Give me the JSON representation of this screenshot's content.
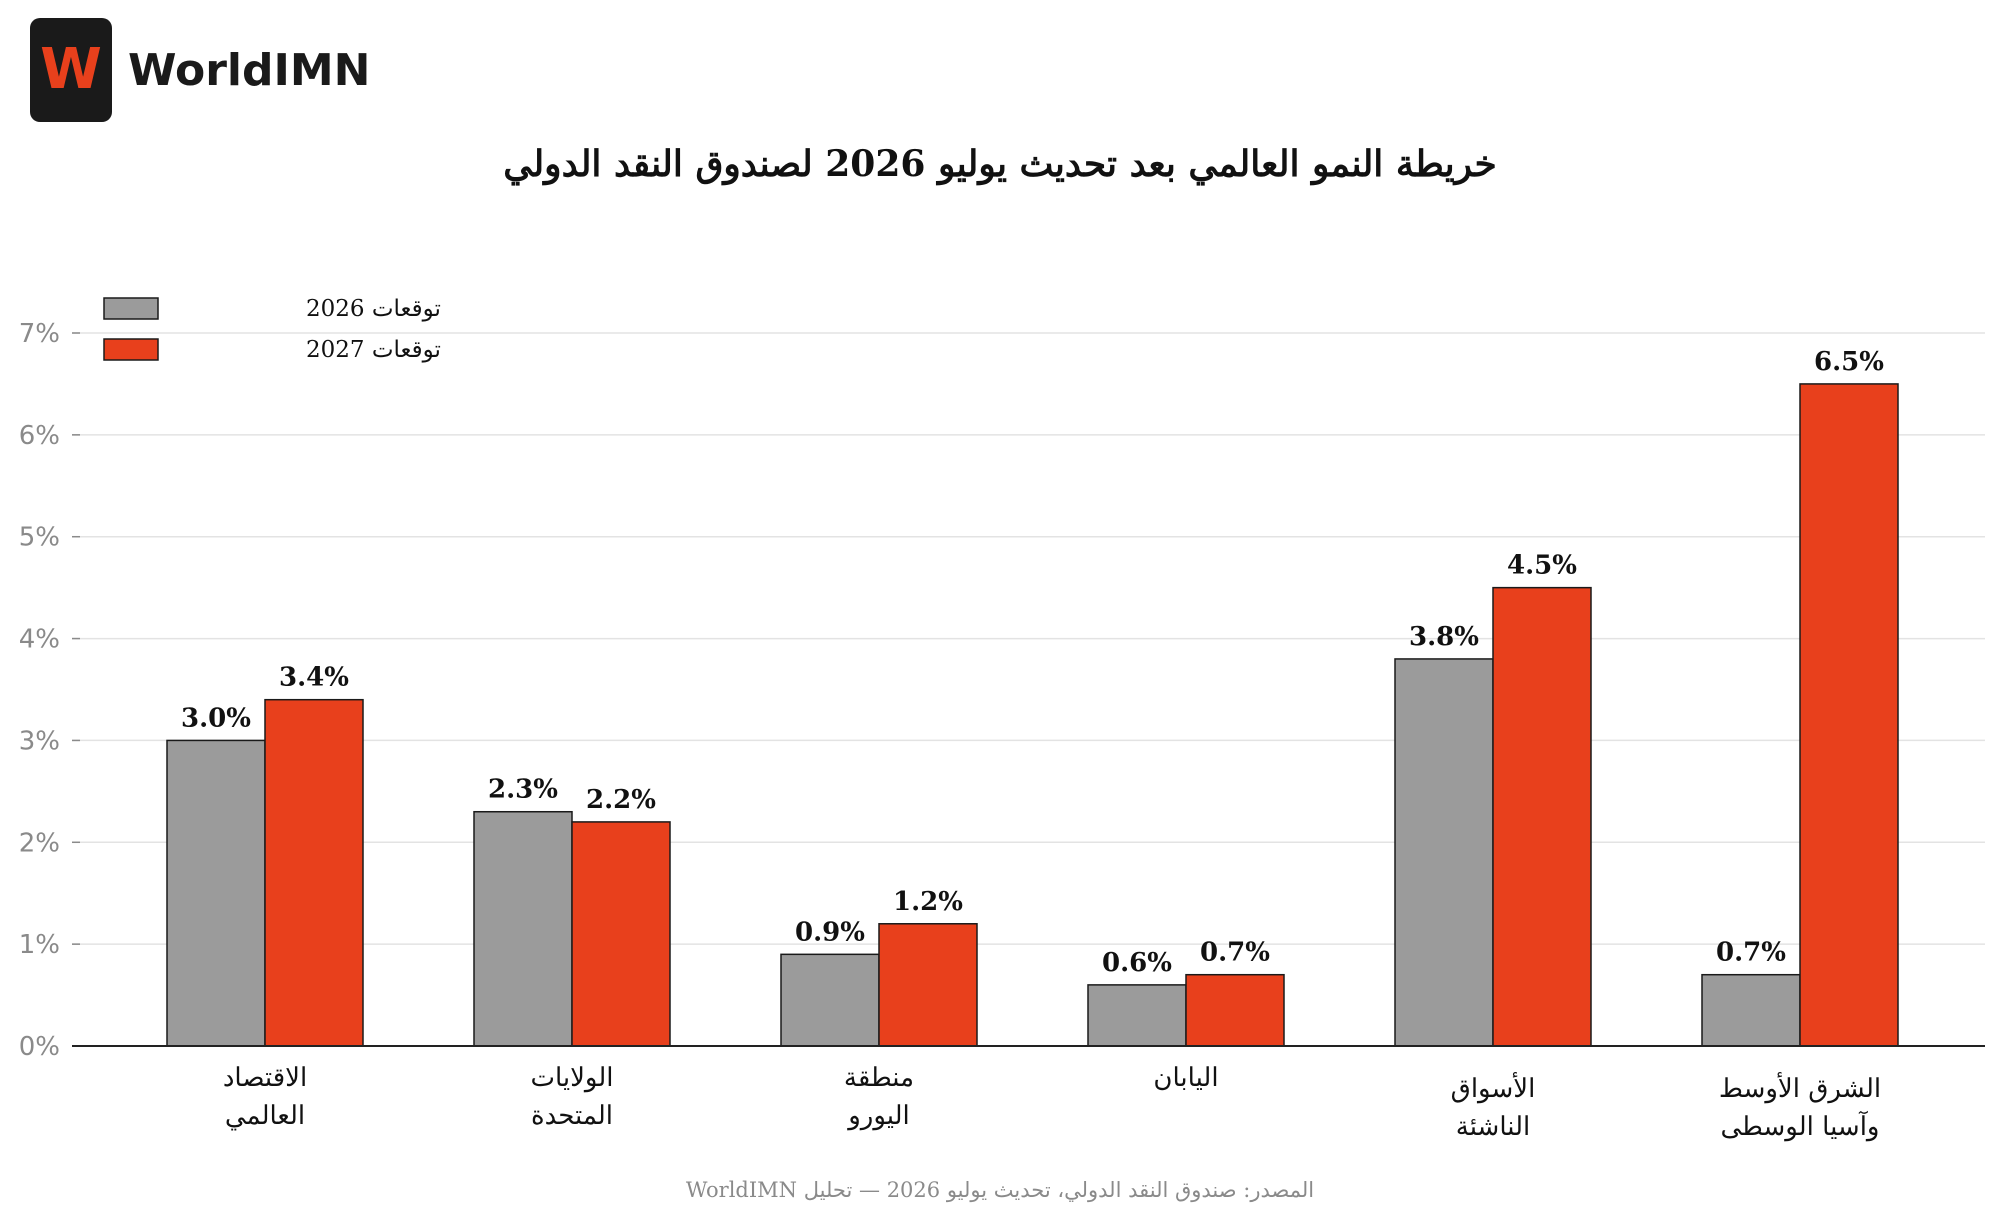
{
  "brand": {
    "logo_letter": "W",
    "name": "WorldIMN"
  },
  "colors": {
    "series_2026": "#9b9b9b",
    "series_2027": "#e8401c",
    "axis": "#222222",
    "grid": "#e3e3e3",
    "tick_text": "#8a8a8a"
  },
  "chart_data": {
    "type": "bar",
    "title": "خريطة النمو العالمي بعد تحديث يوليو 2026 لصندوق النقد الدولي",
    "categories": [
      [
        "الاقتصاد",
        "العالمي"
      ],
      [
        "الولايات",
        "المتحدة"
      ],
      [
        "منطقة",
        "اليورو"
      ],
      [
        "اليابان"
      ],
      [
        "الأسواق",
        "الناشئة"
      ],
      [
        "الشرق الأوسط",
        "وآسيا الوسطى"
      ]
    ],
    "series": [
      {
        "name": "توقعات 2026",
        "values": [
          3.0,
          2.3,
          0.9,
          0.6,
          3.8,
          0.7
        ],
        "labels": [
          "3.0%",
          "2.3%",
          "0.9%",
          "0.6%",
          "3.8%",
          "0.7%"
        ]
      },
      {
        "name": "توقعات 2027",
        "values": [
          3.4,
          2.2,
          1.2,
          0.7,
          4.5,
          6.5
        ],
        "labels": [
          "3.4%",
          "2.2%",
          "1.2%",
          "0.7%",
          "4.5%",
          "6.5%"
        ]
      }
    ],
    "ylim": [
      0,
      7
    ],
    "yticks": [
      "0%",
      "1%",
      "2%",
      "3%",
      "4%",
      "5%",
      "6%",
      "7%"
    ],
    "grid": true,
    "legend_position": "top-left"
  },
  "source_note": "المصدر: صندوق النقد الدولي، تحديث يوليو 2026 — تحليل WorldIMN"
}
